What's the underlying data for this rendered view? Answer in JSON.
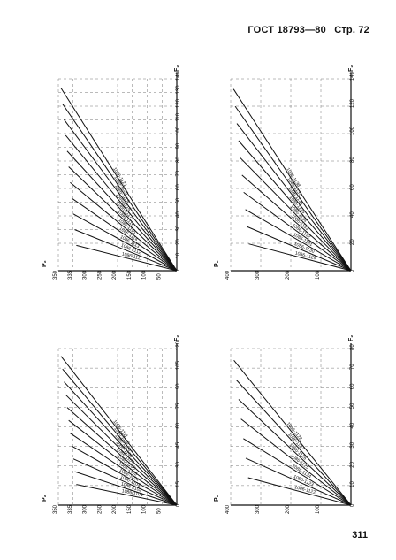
{
  "header": {
    "standard": "ГОСТ 18793—80",
    "page_label": "Стр. 72"
  },
  "page_number": "311",
  "chart_data": [
    {
      "type": "line",
      "axis_x_label": "F₂",
      "axis_y_label": "P₂",
      "x_ticks": [
        "0",
        "15",
        "30",
        "45",
        "60",
        "75",
        "90",
        "105",
        "120"
      ],
      "y_ticks": [
        "50",
        "100",
        "150",
        "200",
        "250",
        "300",
        "335",
        "350"
      ],
      "series_labels": [
        "1086-1101",
        "1086-1102",
        "1086-1103",
        "1086-1104",
        "1086-1105",
        "1086-1106",
        "1086-1107",
        "1086-1108",
        "1086-1109",
        "1086-1110",
        "1086-1111"
      ]
    },
    {
      "type": "line",
      "axis_x_label": "F₂",
      "axis_y_label": "P₂",
      "x_ticks": [
        "0",
        "10",
        "20",
        "30",
        "40",
        "50",
        "60",
        "70",
        "80"
      ],
      "y_ticks": [
        "100",
        "200",
        "300",
        "400"
      ],
      "series_labels": [
        "1086-1122",
        "1086-1123",
        "1086-1124",
        "1086-1125",
        "1086-1126",
        "1086-1127",
        "1086-1128"
      ]
    },
    {
      "type": "line",
      "axis_x_label": "F₂",
      "axis_y_label": "P₂",
      "x_ticks": [
        "0",
        "10",
        "20",
        "30",
        "40",
        "50",
        "60",
        "70",
        "80",
        "90",
        "100",
        "110",
        "120",
        "130",
        "140"
      ],
      "y_ticks": [
        "50",
        "100",
        "150",
        "200",
        "250",
        "300",
        "335",
        "350"
      ],
      "series_labels": [
        "1086-1111",
        "1086-1112",
        "1086-1113",
        "1086-1114",
        "1086-1115",
        "1086-1116",
        "1086-1117",
        "1086-1118",
        "1086-1119",
        "1086-1120",
        "1086-1121"
      ]
    },
    {
      "type": "line",
      "axis_x_label": "F₂",
      "axis_y_label": "P₂",
      "x_ticks": [
        "0",
        "20",
        "40",
        "60",
        "80",
        "100",
        "120",
        "140"
      ],
      "y_ticks": [
        "100",
        "200",
        "300",
        "400"
      ],
      "series_labels": [
        "1086-1129",
        "1086-1130",
        "1086-1131",
        "1086-1132",
        "1086-1133",
        "1086-1134",
        "1086-1135",
        "1086-1136",
        "1086-1137",
        "1086-1138"
      ]
    }
  ]
}
